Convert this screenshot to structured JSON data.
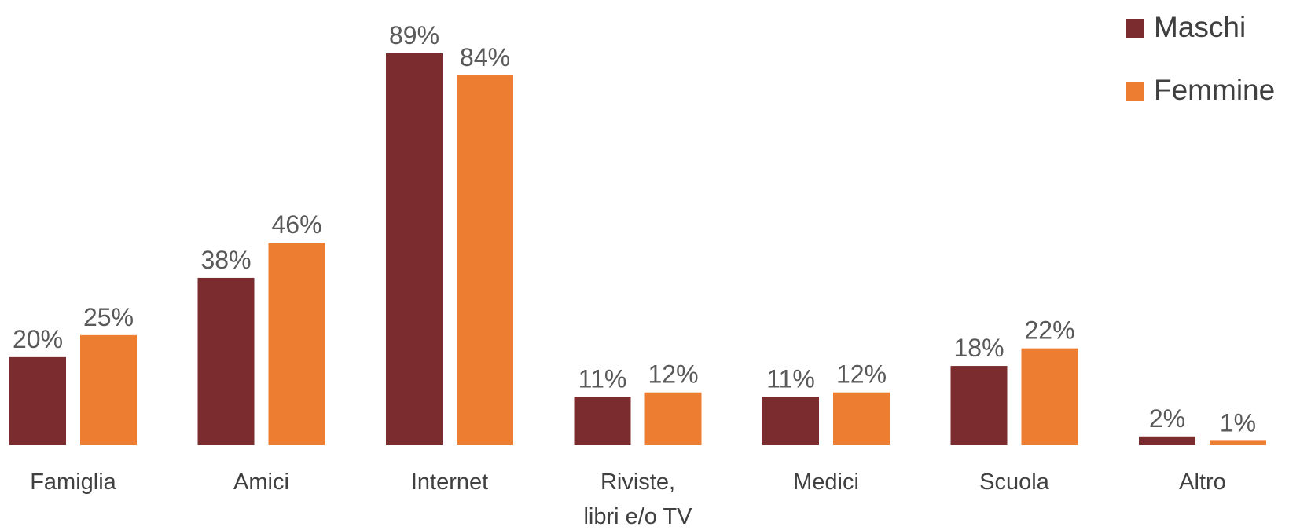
{
  "chart_data": {
    "type": "bar",
    "categories": [
      [
        "Famiglia"
      ],
      [
        "Amici"
      ],
      [
        "Internet"
      ],
      [
        "Riviste,",
        "libri e/o TV"
      ],
      [
        "Medici"
      ],
      [
        "Scuola"
      ],
      [
        "Altro"
      ]
    ],
    "series": [
      {
        "name": "Maschi",
        "color": "#7b2c2f",
        "values": [
          20,
          38,
          89,
          11,
          11,
          18,
          2
        ],
        "labels": [
          "20%",
          "38%",
          "89%",
          "11%",
          "11%",
          "18%",
          "2%"
        ]
      },
      {
        "name": "Femmine",
        "color": "#ed7d31",
        "values": [
          25,
          46,
          84,
          12,
          12,
          22,
          1
        ],
        "labels": [
          "25%",
          "46%",
          "84%",
          "12%",
          "12%",
          "22%",
          "1%"
        ]
      }
    ],
    "ylim": [
      0,
      100
    ],
    "grid": false,
    "legend_position": "top-right"
  }
}
